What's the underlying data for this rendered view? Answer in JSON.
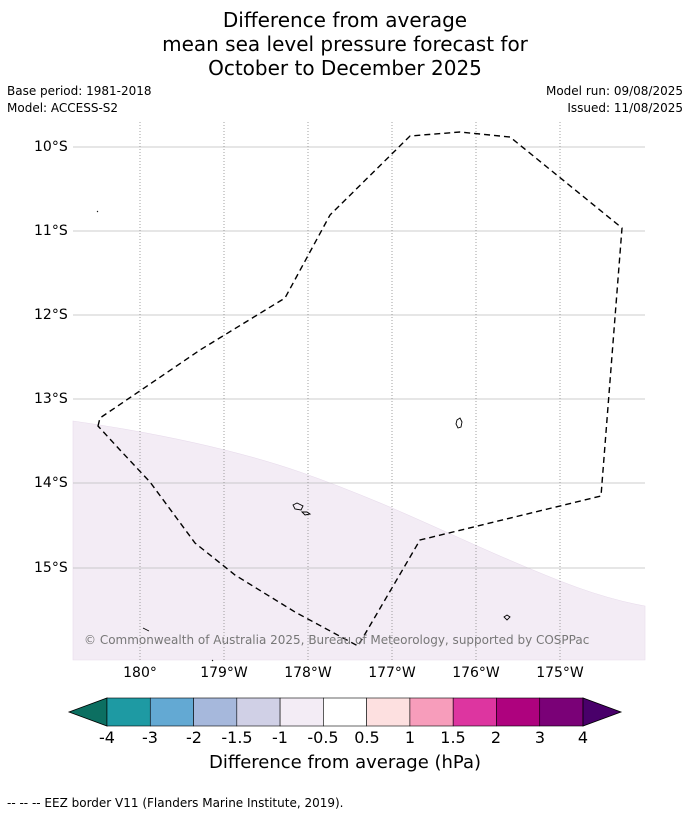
{
  "title": {
    "line1": "Difference from average",
    "line2": "mean sea level pressure forecast for",
    "line3": "October to December 2025"
  },
  "meta": {
    "base_period": "Base period: 1981-2018",
    "model": "Model: ACCESS-S2",
    "model_run": "Model run: 09/08/2025",
    "issued": "Issued: 11/08/2025"
  },
  "map": {
    "latitude_labels": [
      "10°S",
      "11°S",
      "12°S",
      "13°S",
      "14°S",
      "15°S"
    ],
    "longitude_labels": [
      "180°",
      "179°W",
      "178°W",
      "177°W",
      "176°W",
      "175°W"
    ],
    "copyright": "© Commonwealth of Australia 2025, Bureau of Meteorology, supported by COSPPac",
    "shaded_category_color": "#f3ecf5"
  },
  "colorbar": {
    "tick_labels": [
      "-4",
      "-3",
      "-2",
      "-1.5",
      "-1",
      "-0.5",
      "0.5",
      "1",
      "1.5",
      "2",
      "3",
      "4"
    ],
    "colors": [
      "#0c6f61",
      "#1e9aa3",
      "#63a9d3",
      "#a6b8dc",
      "#d0d0e6",
      "#f3ecf5",
      "#ffffff",
      "#fde0e0",
      "#f79dbb",
      "#dd35a0",
      "#ae027e",
      "#7a0177",
      "#49006a"
    ],
    "label": "Difference from average (hPa)"
  },
  "footnote": "--  --  -- EEZ border V11 (Flanders Marine Institute, 2019)."
}
